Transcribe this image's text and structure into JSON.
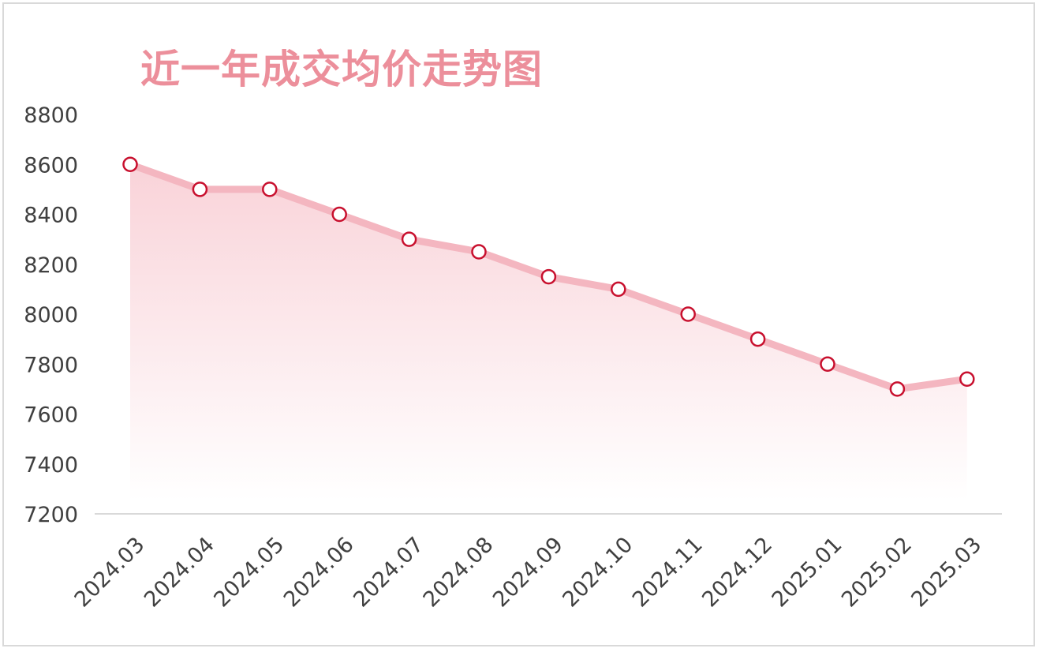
{
  "chart_data": {
    "type": "area",
    "title": "近一年成交均价走势图",
    "categories": [
      "2024.03",
      "2024.04",
      "2024.05",
      "2024.06",
      "2024.07",
      "2024.08",
      "2024.09",
      "2024.10",
      "2024.11",
      "2024.12",
      "2025.01",
      "2025.02",
      "2025.03"
    ],
    "values": [
      8600,
      8500,
      8500,
      8400,
      8300,
      8250,
      8150,
      8100,
      8000,
      7900,
      7800,
      7700,
      7740
    ],
    "ylim": [
      7200,
      8800
    ],
    "yticks": [
      7200,
      7400,
      7600,
      7800,
      8000,
      8200,
      8400,
      8600,
      8800
    ],
    "grid": false,
    "colors": {
      "line": "#f4b6c0",
      "marker_stroke": "#c8102e",
      "marker_fill": "#ffffff",
      "area_top": "#f7c4cc",
      "title": "#ec8f9b",
      "axis": "#d9d9d9"
    }
  }
}
